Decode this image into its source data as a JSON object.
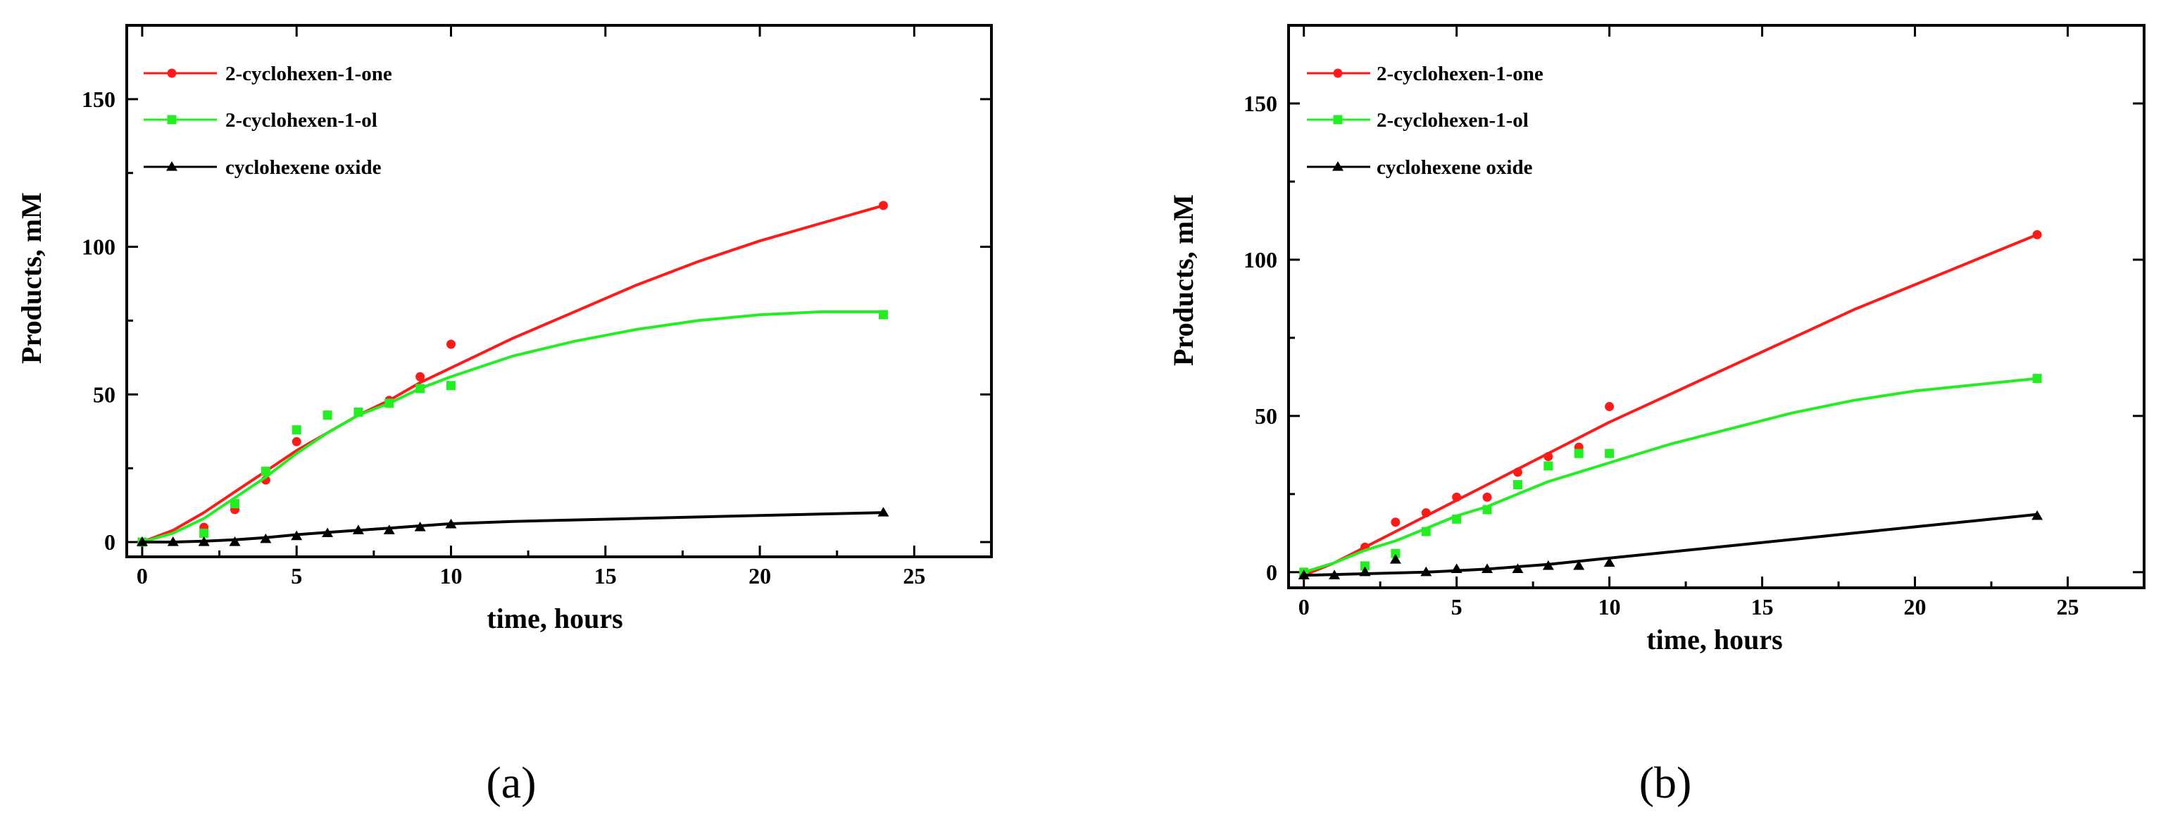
{
  "colors": {
    "red": "#ff1a1a",
    "green": "#22ee22",
    "black": "#000000"
  },
  "chart_data": [
    {
      "type": "line",
      "panel_label": "(a)",
      "xlabel": "time, hours",
      "ylabel": "Products, mM",
      "xlim": [
        -0.5,
        27.5
      ],
      "ylim": [
        -5,
        175
      ],
      "xticks": [
        0,
        5,
        10,
        15,
        20,
        25
      ],
      "yticks": [
        0,
        50,
        100,
        150
      ],
      "grid": false,
      "legend_position": "top-left",
      "series": [
        {
          "name": "2-cyclohexen-1-one",
          "color": "#ff1a1a",
          "marker": "circle",
          "points": [
            [
              0,
              0
            ],
            [
              2,
              5
            ],
            [
              3,
              11
            ],
            [
              4,
              21
            ],
            [
              5,
              34
            ],
            [
              6,
              43
            ],
            [
              8,
              48
            ],
            [
              9,
              56
            ],
            [
              10,
              67
            ],
            [
              24,
              114
            ]
          ],
          "fit": [
            [
              0,
              0
            ],
            [
              1,
              4
            ],
            [
              2,
              10
            ],
            [
              3,
              17
            ],
            [
              4,
              24
            ],
            [
              5,
              31
            ],
            [
              6,
              37
            ],
            [
              7,
              43
            ],
            [
              8,
              48
            ],
            [
              9,
              54
            ],
            [
              10,
              59
            ],
            [
              12,
              69
            ],
            [
              14,
              78
            ],
            [
              16,
              87
            ],
            [
              18,
              95
            ],
            [
              20,
              102
            ],
            [
              22,
              108
            ],
            [
              24,
              114
            ]
          ]
        },
        {
          "name": "2-cyclohexen-1-ol",
          "color": "#22ee22",
          "marker": "square",
          "points": [
            [
              0,
              0
            ],
            [
              2,
              3
            ],
            [
              3,
              13
            ],
            [
              4,
              24
            ],
            [
              5,
              38
            ],
            [
              6,
              43
            ],
            [
              7,
              44
            ],
            [
              8,
              47
            ],
            [
              9,
              52
            ],
            [
              10,
              53
            ],
            [
              24,
              77
            ]
          ],
          "fit": [
            [
              0,
              0
            ],
            [
              1,
              3
            ],
            [
              2,
              8
            ],
            [
              3,
              15
            ],
            [
              4,
              22
            ],
            [
              5,
              30
            ],
            [
              6,
              37
            ],
            [
              7,
              43
            ],
            [
              8,
              47
            ],
            [
              9,
              52
            ],
            [
              10,
              56
            ],
            [
              12,
              63
            ],
            [
              14,
              68
            ],
            [
              16,
              72
            ],
            [
              18,
              75
            ],
            [
              20,
              77
            ],
            [
              22,
              78
            ],
            [
              24,
              78
            ]
          ]
        },
        {
          "name": "cyclohexene oxide",
          "color": "#000000",
          "marker": "triangle",
          "points": [
            [
              0,
              0
            ],
            [
              1,
              0
            ],
            [
              2,
              0
            ],
            [
              3,
              0
            ],
            [
              4,
              1
            ],
            [
              5,
              2
            ],
            [
              6,
              3
            ],
            [
              7,
              4
            ],
            [
              8,
              4
            ],
            [
              9,
              5
            ],
            [
              10,
              6
            ],
            [
              24,
              10
            ]
          ],
          "fit": [
            [
              0,
              0
            ],
            [
              1,
              0
            ],
            [
              2,
              0.3
            ],
            [
              3,
              0.8
            ],
            [
              4,
              1.5
            ],
            [
              5,
              2.5
            ],
            [
              6,
              3.3
            ],
            [
              7,
              4
            ],
            [
              8,
              4.7
            ],
            [
              9,
              5.5
            ],
            [
              10,
              6.2
            ],
            [
              12,
              7
            ],
            [
              16,
              8
            ],
            [
              20,
              9
            ],
            [
              24,
              10
            ]
          ]
        }
      ]
    },
    {
      "type": "line",
      "panel_label": "(b)",
      "xlabel": "time, hours",
      "ylabel": "Products, mM",
      "xlim": [
        -0.5,
        27.5
      ],
      "ylim": [
        -5,
        175
      ],
      "xticks": [
        0,
        5,
        10,
        15,
        20,
        25
      ],
      "yticks": [
        0,
        50,
        100,
        150
      ],
      "grid": false,
      "legend_position": "top-left",
      "series": [
        {
          "name": "2-cyclohexen-1-one",
          "color": "#ff1a1a",
          "marker": "circle",
          "points": [
            [
              0,
              -1
            ],
            [
              2,
              8
            ],
            [
              3,
              16
            ],
            [
              4,
              19
            ],
            [
              5,
              24
            ],
            [
              6,
              24
            ],
            [
              7,
              32
            ],
            [
              8,
              37
            ],
            [
              9,
              40
            ],
            [
              10,
              53
            ],
            [
              24,
              108
            ]
          ],
          "fit": [
            [
              0,
              -1
            ],
            [
              1,
              3
            ],
            [
              2,
              8
            ],
            [
              3,
              13
            ],
            [
              4,
              18
            ],
            [
              5,
              23
            ],
            [
              6,
              28
            ],
            [
              7,
              33
            ],
            [
              8,
              38
            ],
            [
              9,
              43
            ],
            [
              10,
              48
            ],
            [
              12,
              57
            ],
            [
              14,
              66
            ],
            [
              16,
              75
            ],
            [
              18,
              84
            ],
            [
              20,
              92
            ],
            [
              22,
              100
            ],
            [
              24,
              108
            ]
          ]
        },
        {
          "name": "2-cyclohexen-1-ol",
          "color": "#22ee22",
          "marker": "square",
          "points": [
            [
              0,
              0
            ],
            [
              2,
              2
            ],
            [
              3,
              6
            ],
            [
              4,
              13
            ],
            [
              5,
              17
            ],
            [
              6,
              20
            ],
            [
              7,
              28
            ],
            [
              8,
              34
            ],
            [
              9,
              38
            ],
            [
              10,
              38
            ],
            [
              24,
              62
            ]
          ],
          "fit": [
            [
              0,
              0
            ],
            [
              1,
              3
            ],
            [
              2,
              7
            ],
            [
              3,
              10
            ],
            [
              4,
              14
            ],
            [
              5,
              18
            ],
            [
              6,
              21
            ],
            [
              7,
              25
            ],
            [
              8,
              29
            ],
            [
              9,
              32
            ],
            [
              10,
              35
            ],
            [
              12,
              41
            ],
            [
              14,
              46
            ],
            [
              16,
              51
            ],
            [
              18,
              55
            ],
            [
              20,
              58
            ],
            [
              22,
              60
            ],
            [
              24,
              62
            ]
          ]
        },
        {
          "name": "cyclohexene oxide",
          "color": "#000000",
          "marker": "triangle",
          "points": [
            [
              0,
              -1
            ],
            [
              1,
              -1
            ],
            [
              2,
              0
            ],
            [
              3,
              4
            ],
            [
              4,
              0
            ],
            [
              5,
              1
            ],
            [
              6,
              1
            ],
            [
              7,
              1
            ],
            [
              8,
              2
            ],
            [
              9,
              2
            ],
            [
              10,
              3
            ],
            [
              24,
              18
            ]
          ],
          "fit": [
            [
              0,
              -1
            ],
            [
              2,
              -0.5
            ],
            [
              4,
              0
            ],
            [
              6,
              1
            ],
            [
              8,
              2.5
            ],
            [
              10,
              4.5
            ],
            [
              12,
              6.5
            ],
            [
              14,
              8.5
            ],
            [
              16,
              10.5
            ],
            [
              18,
              12.5
            ],
            [
              20,
              14.5
            ],
            [
              22,
              16.5
            ],
            [
              24,
              18.5
            ]
          ]
        }
      ]
    }
  ]
}
